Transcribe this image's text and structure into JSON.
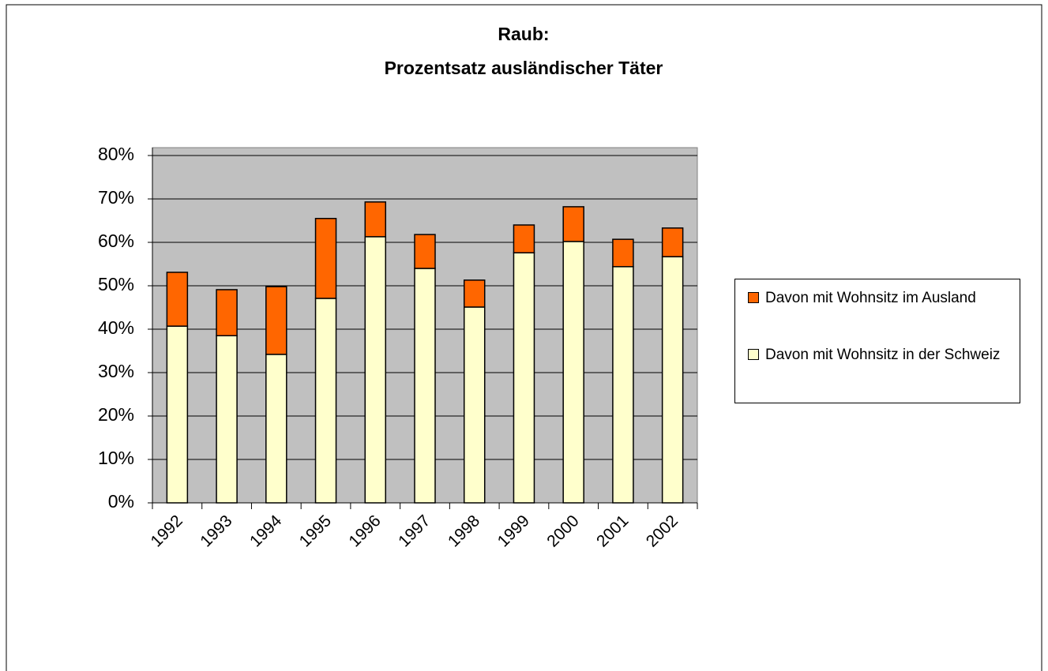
{
  "chart_data": {
    "type": "stacked_bar",
    "title": [
      "Raub:",
      "Prozentsatz ausländischer Täter"
    ],
    "categories": [
      "1992",
      "1993",
      "1994",
      "1995",
      "1996",
      "1997",
      "1998",
      "1999",
      "2000",
      "2001",
      "2002"
    ],
    "series": [
      {
        "name": "Davon mit Wohnsitz in der Schweiz",
        "color": "#ffffcc",
        "values": [
          40.7,
          38.5,
          34.2,
          47.1,
          61.3,
          54.0,
          45.1,
          57.6,
          60.2,
          54.4,
          56.7
        ]
      },
      {
        "name": "Davon mit Wohnsitz im Ausland",
        "color": "#ff6600",
        "values": [
          12.4,
          10.6,
          15.6,
          18.4,
          8.0,
          7.8,
          6.2,
          6.4,
          8.0,
          6.3,
          6.6
        ]
      }
    ],
    "ylim": [
      0,
      80
    ],
    "yticks": [
      {
        "value": 0,
        "label": "0%"
      },
      {
        "value": 10,
        "label": "10%"
      },
      {
        "value": 20,
        "label": "20%"
      },
      {
        "value": 30,
        "label": "30%"
      },
      {
        "value": 40,
        "label": "40%"
      },
      {
        "value": 50,
        "label": "50%"
      },
      {
        "value": 60,
        "label": "60%"
      },
      {
        "value": 70,
        "label": "70%"
      },
      {
        "value": 80,
        "label": "80%"
      }
    ],
    "grid": true,
    "legend": "right"
  }
}
